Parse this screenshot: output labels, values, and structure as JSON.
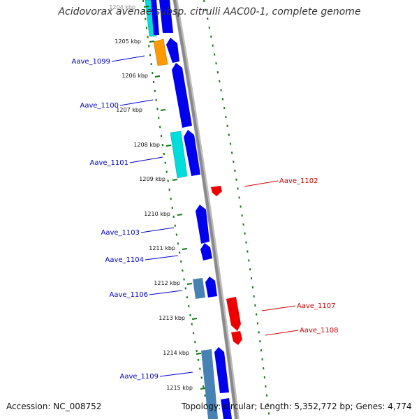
{
  "title": "Acidovorax avenae subsp. citrulli AAC00-1, complete genome",
  "footer": {
    "accession": "Accession: NC_008752",
    "topology": "Topology: circular; Length: 5,352,772 bp; Genes: 4,774"
  },
  "colors": {
    "backbone": "#8a8a8a",
    "tick": "#117711",
    "forward_label": "#0000cc",
    "reverse_label": "#cc0000",
    "gene_blue": "#0000ee",
    "gene_cyan": "#00dddd",
    "gene_orange": "#ff9900",
    "gene_steel": "#4682b4",
    "gene_red": "#ee0000"
  },
  "ticks": [
    {
      "label": "1204 kbp"
    },
    {
      "label": "1205 kbp"
    },
    {
      "label": "1206 kbp"
    },
    {
      "label": "1207 kbp"
    },
    {
      "label": "1208 kbp"
    },
    {
      "label": "1209 kbp"
    },
    {
      "label": "1210 kbp"
    },
    {
      "label": "1211 kbp"
    },
    {
      "label": "1212 kbp"
    },
    {
      "label": "1213 kbp"
    },
    {
      "label": "1214 kbp"
    },
    {
      "label": "1215 kbp"
    }
  ],
  "gene_labels": [
    {
      "text": "Aave_1099",
      "strand": "forward"
    },
    {
      "text": "Aave_1100",
      "strand": "forward"
    },
    {
      "text": "Aave_1101",
      "strand": "forward"
    },
    {
      "text": "Aave_1102",
      "strand": "reverse"
    },
    {
      "text": "Aave_1103",
      "strand": "forward"
    },
    {
      "text": "Aave_1104",
      "strand": "forward"
    },
    {
      "text": "Aave_1106",
      "strand": "forward"
    },
    {
      "text": "Aave_1107",
      "strand": "reverse"
    },
    {
      "text": "Aave_1108",
      "strand": "reverse"
    },
    {
      "text": "Aave_1109",
      "strand": "forward"
    }
  ]
}
